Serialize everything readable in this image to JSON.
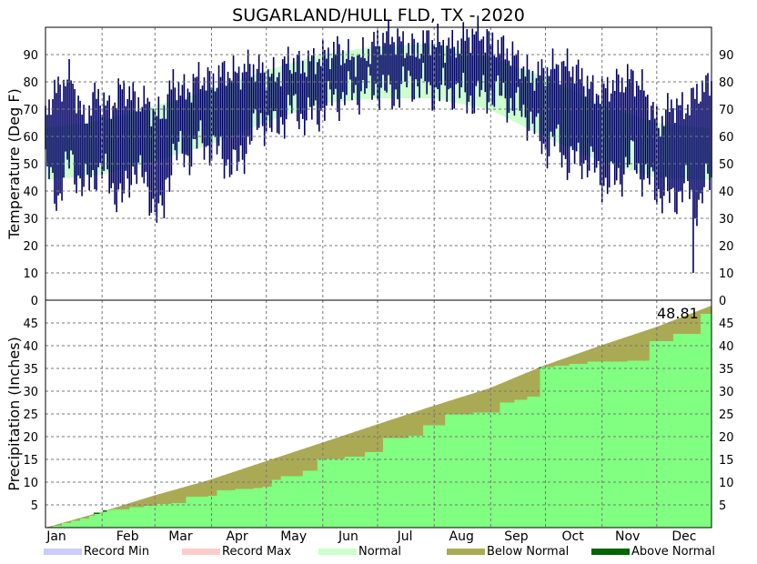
{
  "chart_data": [
    {
      "type": "bar",
      "title": "SUGARLAND/HULL FLD, TX - 2020",
      "ylabel": "Temperature (Deg F)",
      "ylim": [
        0,
        100
      ],
      "yticks": [
        0,
        10,
        20,
        30,
        40,
        50,
        60,
        70,
        80,
        90
      ],
      "x_month_labels": [
        "Jan",
        "Feb",
        "Mar",
        "Apr",
        "May",
        "Jun",
        "Jul",
        "Aug",
        "Sep",
        "Oct",
        "Nov",
        "Dec"
      ],
      "grid": true,
      "colors": {
        "daily_range": "#000066",
        "normal_band": "#ccffcc"
      },
      "normal_band": {
        "x_day": [
          1,
          32,
          60,
          91,
          121,
          152,
          182,
          213,
          244,
          274,
          305,
          335,
          366
        ],
        "low": [
          44,
          46,
          51,
          57,
          65,
          72,
          74,
          74,
          70,
          60,
          51,
          45,
          44
        ],
        "high": [
          63,
          66,
          71,
          77,
          84,
          90,
          93,
          94,
          89,
          82,
          72,
          65,
          63
        ]
      },
      "daily_range_keypoints": {
        "x_day": [
          1,
          8,
          15,
          22,
          29,
          36,
          43,
          50,
          57,
          64,
          71,
          78,
          85,
          92,
          99,
          106,
          113,
          120,
          127,
          134,
          141,
          148,
          155,
          162,
          169,
          176,
          183,
          190,
          197,
          204,
          211,
          218,
          225,
          232,
          239,
          246,
          253,
          260,
          267,
          274,
          281,
          288,
          295,
          302,
          309,
          316,
          323,
          330,
          337,
          344,
          351,
          358,
          366
        ],
        "low": [
          48,
          38,
          52,
          40,
          48,
          44,
          36,
          50,
          40,
          30,
          55,
          52,
          58,
          56,
          52,
          48,
          60,
          66,
          62,
          70,
          68,
          67,
          72,
          74,
          76,
          77,
          78,
          75,
          78,
          80,
          77,
          76,
          77,
          74,
          75,
          76,
          74,
          70,
          66,
          56,
          58,
          50,
          52,
          48,
          42,
          46,
          52,
          44,
          40,
          36,
          42,
          35,
          45
        ],
        "high": [
          70,
          78,
          82,
          66,
          76,
          70,
          78,
          74,
          72,
          67,
          80,
          76,
          82,
          80,
          84,
          83,
          86,
          84,
          82,
          88,
          86,
          88,
          90,
          92,
          88,
          90,
          95,
          97,
          94,
          92,
          96,
          94,
          93,
          97,
          98,
          94,
          92,
          88,
          82,
          84,
          86,
          86,
          82,
          76,
          78,
          80,
          82,
          76,
          64,
          72,
          70,
          76,
          80
        ],
        "extremes": [
          {
            "day": 66,
            "low": 30
          },
          {
            "day": 356,
            "low": 10
          }
        ]
      }
    },
    {
      "type": "area",
      "ylabel": "Precipitation (Inches)",
      "ylim": [
        0,
        50
      ],
      "yticks": [
        5,
        10,
        15,
        20,
        25,
        30,
        35,
        40,
        45
      ],
      "grid": true,
      "annotation": "48.81",
      "colors": {
        "actual": "#80ff80",
        "below_normal": "#aaaa55",
        "above_normal": "#006600"
      },
      "normal_cumulative": {
        "x_day": [
          1,
          32,
          60,
          91,
          121,
          152,
          182,
          213,
          244,
          274,
          305,
          335,
          366
        ],
        "values": [
          0,
          3.5,
          7.0,
          10.5,
          14.5,
          18.6,
          22.6,
          26.7,
          30.6,
          35.6,
          40.0,
          44.0,
          48.81
        ]
      },
      "actual_cumulative_steps": {
        "x_day": [
          1,
          5,
          10,
          15,
          20,
          25,
          28,
          33,
          37,
          47,
          55,
          62,
          70,
          78,
          90,
          95,
          105,
          115,
          120,
          125,
          130,
          142,
          150,
          165,
          176,
          186,
          200,
          208,
          220,
          235,
          250,
          258,
          265,
          272,
          280,
          288,
          298,
          320,
          332,
          345,
          360,
          366
        ],
        "values": [
          0,
          0.4,
          1.0,
          1.5,
          2.0,
          2.6,
          3.3,
          3.8,
          4.0,
          4.5,
          4.8,
          5.2,
          5.4,
          6.8,
          7.0,
          8.2,
          8.5,
          8.7,
          9.0,
          10.5,
          11.3,
          12.5,
          15.1,
          15.6,
          16.6,
          19.7,
          20.2,
          22.5,
          24.9,
          25.3,
          27.5,
          28.1,
          28.8,
          35.3,
          35.6,
          36.0,
          36.5,
          36.7,
          41.0,
          42.6,
          47.0,
          48.81
        ]
      }
    }
  ],
  "legend": [
    {
      "label": "Record Min",
      "color": "#ccccff"
    },
    {
      "label": "Record Max",
      "color": "#ffcccc"
    },
    {
      "label": "Normal",
      "color": "#ccffcc"
    },
    {
      "label": "Below Normal",
      "color": "#aaaa55"
    },
    {
      "label": "Above Normal",
      "color": "#006600"
    }
  ]
}
